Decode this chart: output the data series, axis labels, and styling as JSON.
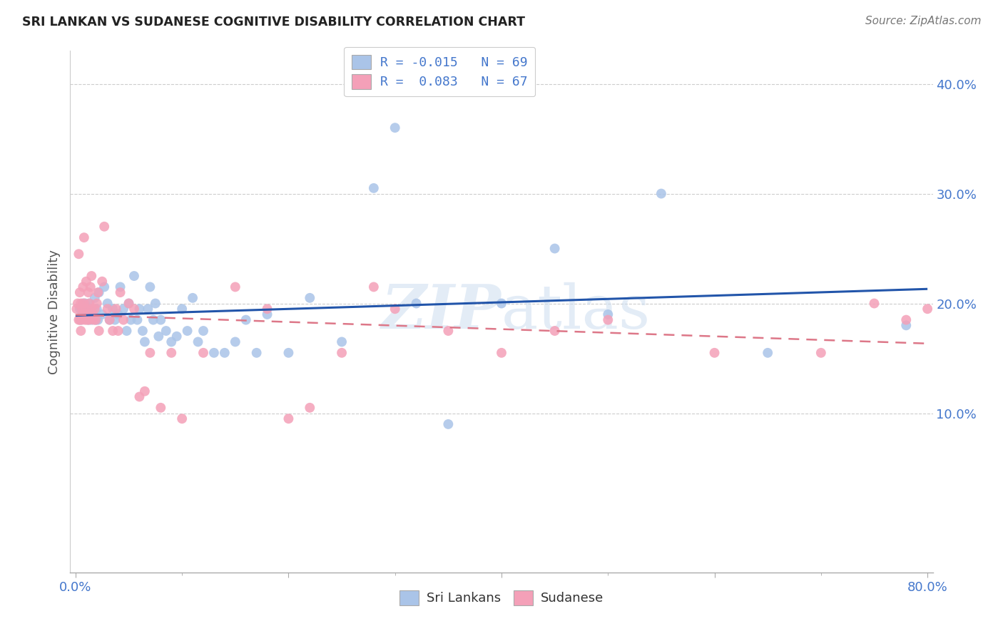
{
  "title": "SRI LANKAN VS SUDANESE COGNITIVE DISABILITY CORRELATION CHART",
  "source": "Source: ZipAtlas.com",
  "ylabel": "Cognitive Disability",
  "sri_lankan_R": -0.015,
  "sri_lankan_N": 69,
  "sudanese_R": 0.083,
  "sudanese_N": 67,
  "sri_lankan_color": "#aac4e8",
  "sudanese_color": "#f4a0b8",
  "sri_lankan_line_color": "#2255aa",
  "sudanese_line_color": "#dd7788",
  "background_color": "#ffffff",
  "grid_color": "#cccccc",
  "title_color": "#222222",
  "axis_label_color": "#4477cc",
  "legend_text_color": "#4477cc",
  "watermark_color": "#ccddf0",
  "watermark": "ZIPatlas",
  "xlim": [
    -0.005,
    0.805
  ],
  "ylim": [
    -0.045,
    0.43
  ],
  "yticks": [
    0.1,
    0.2,
    0.3,
    0.4
  ],
  "ytick_labels": [
    "10.0%",
    "20.0%",
    "30.0%",
    "40.0%"
  ],
  "xticks": [
    0.0,
    0.2,
    0.4,
    0.6,
    0.8
  ],
  "xtick_labels": [
    "0.0%",
    "",
    "",
    "",
    "80.0%"
  ],
  "sri_lankans_x": [
    0.004,
    0.005,
    0.006,
    0.007,
    0.008,
    0.009,
    0.01,
    0.011,
    0.012,
    0.013,
    0.014,
    0.015,
    0.016,
    0.017,
    0.018,
    0.019,
    0.02,
    0.021,
    0.022,
    0.025,
    0.027,
    0.03,
    0.032,
    0.035,
    0.037,
    0.04,
    0.042,
    0.045,
    0.048,
    0.05,
    0.052,
    0.055,
    0.058,
    0.06,
    0.063,
    0.065,
    0.068,
    0.07,
    0.073,
    0.075,
    0.078,
    0.08,
    0.085,
    0.09,
    0.095,
    0.1,
    0.105,
    0.11,
    0.115,
    0.12,
    0.13,
    0.14,
    0.15,
    0.16,
    0.17,
    0.18,
    0.2,
    0.22,
    0.25,
    0.28,
    0.3,
    0.32,
    0.35,
    0.4,
    0.45,
    0.5,
    0.55,
    0.65,
    0.78
  ],
  "sri_lankans_y": [
    0.195,
    0.185,
    0.19,
    0.2,
    0.195,
    0.2,
    0.19,
    0.195,
    0.185,
    0.2,
    0.195,
    0.185,
    0.195,
    0.19,
    0.205,
    0.185,
    0.195,
    0.185,
    0.21,
    0.19,
    0.215,
    0.2,
    0.185,
    0.195,
    0.185,
    0.19,
    0.215,
    0.195,
    0.175,
    0.2,
    0.185,
    0.225,
    0.185,
    0.195,
    0.175,
    0.165,
    0.195,
    0.215,
    0.185,
    0.2,
    0.17,
    0.185,
    0.175,
    0.165,
    0.17,
    0.195,
    0.175,
    0.205,
    0.165,
    0.175,
    0.155,
    0.155,
    0.165,
    0.185,
    0.155,
    0.19,
    0.155,
    0.205,
    0.165,
    0.305,
    0.36,
    0.2,
    0.09,
    0.2,
    0.25,
    0.19,
    0.3,
    0.155,
    0.18
  ],
  "sudanese_x": [
    0.001,
    0.002,
    0.003,
    0.003,
    0.004,
    0.004,
    0.005,
    0.005,
    0.006,
    0.006,
    0.007,
    0.007,
    0.008,
    0.008,
    0.009,
    0.009,
    0.01,
    0.01,
    0.011,
    0.012,
    0.012,
    0.013,
    0.013,
    0.014,
    0.015,
    0.015,
    0.016,
    0.017,
    0.018,
    0.019,
    0.02,
    0.021,
    0.022,
    0.025,
    0.027,
    0.03,
    0.032,
    0.035,
    0.038,
    0.04,
    0.042,
    0.045,
    0.05,
    0.055,
    0.06,
    0.065,
    0.07,
    0.08,
    0.09,
    0.1,
    0.12,
    0.15,
    0.18,
    0.2,
    0.22,
    0.25,
    0.28,
    0.3,
    0.35,
    0.4,
    0.45,
    0.5,
    0.6,
    0.7,
    0.75,
    0.78,
    0.8
  ],
  "sudanese_y": [
    0.195,
    0.2,
    0.245,
    0.185,
    0.21,
    0.185,
    0.2,
    0.175,
    0.185,
    0.195,
    0.19,
    0.215,
    0.2,
    0.26,
    0.185,
    0.195,
    0.19,
    0.22,
    0.185,
    0.19,
    0.21,
    0.185,
    0.2,
    0.215,
    0.195,
    0.225,
    0.19,
    0.185,
    0.195,
    0.185,
    0.2,
    0.21,
    0.175,
    0.22,
    0.27,
    0.195,
    0.185,
    0.175,
    0.195,
    0.175,
    0.21,
    0.185,
    0.2,
    0.195,
    0.115,
    0.12,
    0.155,
    0.105,
    0.155,
    0.095,
    0.155,
    0.215,
    0.195,
    0.095,
    0.105,
    0.155,
    0.215,
    0.195,
    0.175,
    0.155,
    0.175,
    0.185,
    0.155,
    0.155,
    0.2,
    0.185,
    0.195
  ],
  "legend_R_label1": "R = -0.015   N = 69",
  "legend_R_label2": "R =  0.083   N = 67",
  "bottom_legend_label1": "Sri Lankans",
  "bottom_legend_label2": "Sudanese"
}
